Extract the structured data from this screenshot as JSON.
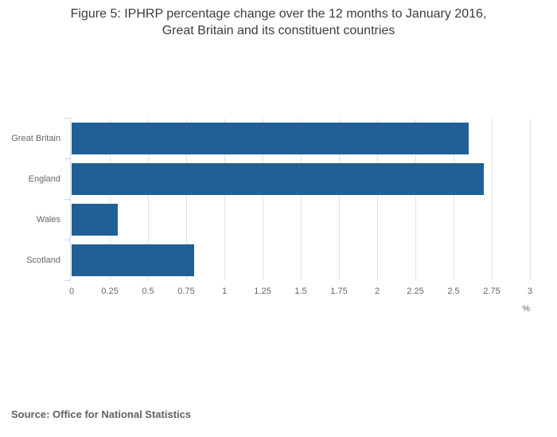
{
  "header": {
    "title_lines": [
      "Figure 5: IPHRP percentage change over the 12 months to January 2016,",
      "Great Britain and its constituent countries"
    ]
  },
  "chart_data": {
    "type": "bar",
    "orientation": "horizontal",
    "title": "Figure 5: IPHRP percentage change over the 12 months to January 2016, Great Britain and its constituent countries",
    "categories": [
      "Great Britain",
      "England",
      "Wales",
      "Scotland"
    ],
    "values": [
      2.6,
      2.7,
      0.3,
      0.8
    ],
    "xlabel": "%",
    "ylabel": "",
    "xlim": [
      0,
      3
    ],
    "xticks": [
      "0",
      "0.25",
      "0.5",
      "0.75",
      "1",
      "1.25",
      "1.5",
      "1.75",
      "2",
      "2.25",
      "2.5",
      "2.75",
      "3"
    ],
    "grid": true,
    "legend": "none",
    "bar_color": "#206095"
  },
  "footer": {
    "source": "Source: Office for National Statistics"
  },
  "colors": {
    "bar": "#206095",
    "gridline": "#e3e3e3",
    "axis_line": "#ccd6eb",
    "tick_label": "#666666",
    "title_text": "#3c3c3e",
    "source_text": "#616161"
  }
}
